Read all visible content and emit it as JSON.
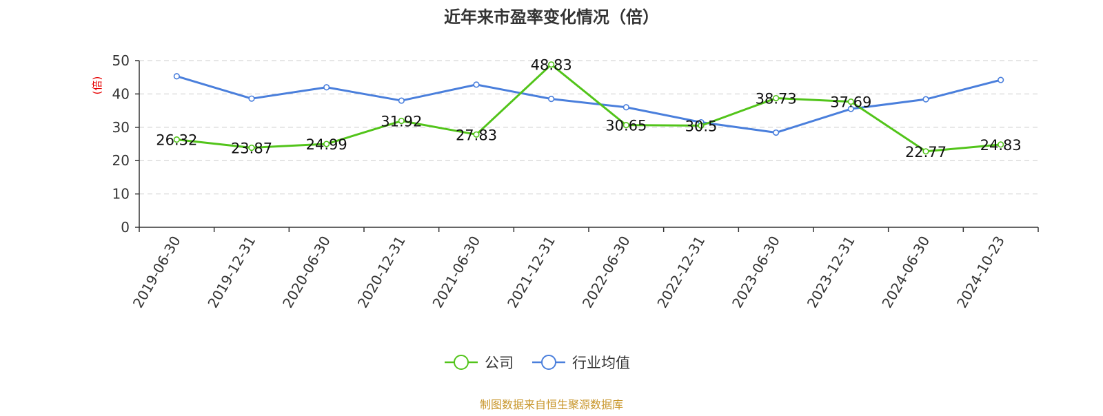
{
  "title": "近年来市盈率变化情况（倍）",
  "source_note": "制图数据来自恒生聚源数据库",
  "chart_data": {
    "type": "line",
    "title": "近年来市盈率变化情况（倍）",
    "ylabel": "(倍)",
    "xlabel": "",
    "ylim": [
      0,
      50
    ],
    "yticks": [
      0,
      10,
      20,
      30,
      40,
      50
    ],
    "grid": true,
    "legend_position": "bottom-center",
    "categories": [
      "2019-06-30",
      "2019-12-31",
      "2020-06-30",
      "2020-12-31",
      "2021-06-30",
      "2021-12-31",
      "2022-06-30",
      "2022-12-31",
      "2023-06-30",
      "2023-12-31",
      "2024-06-30",
      "2024-10-23"
    ],
    "series": [
      {
        "name": "公司",
        "color": "#52c41a",
        "values": [
          26.32,
          23.87,
          24.99,
          31.92,
          27.83,
          48.83,
          30.65,
          30.5,
          38.73,
          37.69,
          22.77,
          24.83
        ],
        "labels": [
          "26.32",
          "23.87",
          "24.99",
          "31.92",
          "27.83",
          "48.83",
          "30.65",
          "30.5",
          "38.73",
          "37.69",
          "22.77",
          "24.83"
        ]
      },
      {
        "name": "行业均值",
        "color": "#4a7fdc",
        "values": [
          45.3,
          38.6,
          42.0,
          38.0,
          42.8,
          38.5,
          36.0,
          31.5,
          28.4,
          35.5,
          38.4,
          44.2
        ]
      }
    ]
  }
}
